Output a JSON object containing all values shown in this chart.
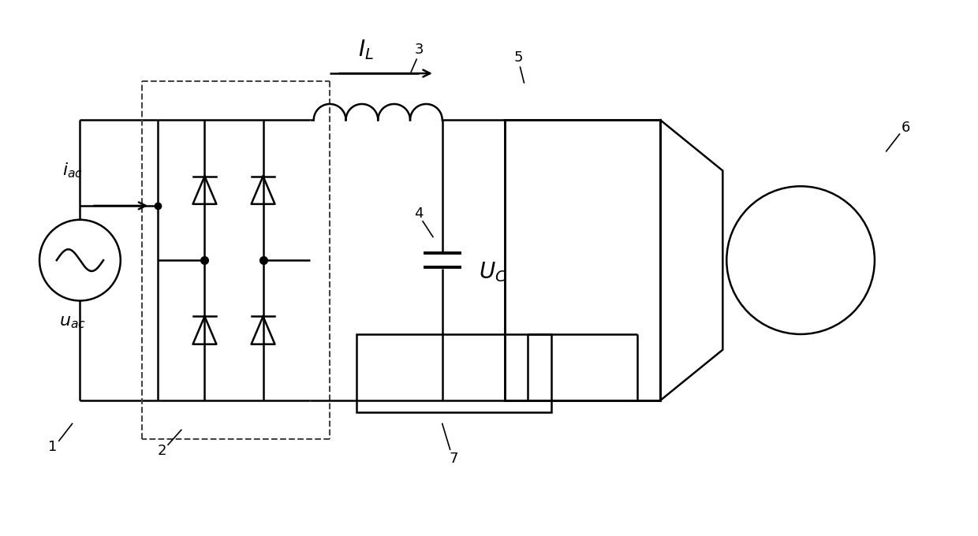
{
  "bg_color": "#ffffff",
  "line_color": "#000000",
  "fig_width": 12.4,
  "fig_height": 6.8,
  "dpi": 100,
  "lw": 1.8,
  "dash_lw": 1.5,
  "num_fontsize": 13,
  "label_fontsize": 16
}
